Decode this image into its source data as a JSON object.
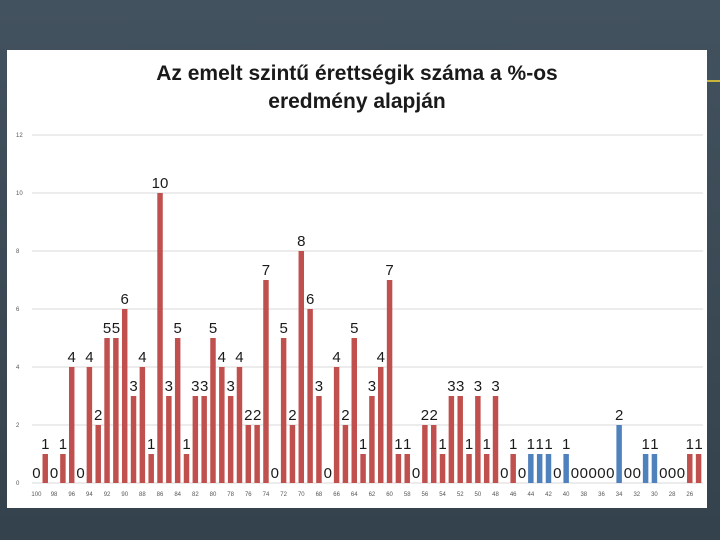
{
  "chart_data": {
    "type": "bar",
    "title_line1": "Az emelt szintű érettségik száma a %-os",
    "title_line2": "eredmény alapján",
    "xlabel": "",
    "ylabel": "",
    "ylim": [
      0,
      12
    ],
    "yticks": [
      "0",
      "2",
      "4",
      "6",
      "8",
      "10",
      "12"
    ],
    "grid": true,
    "colors": {
      "red": "#c0504d",
      "blue": "#4f81bd"
    },
    "x_tick_labels": [
      "100",
      "98",
      "96",
      "94",
      "92",
      "90",
      "88",
      "86",
      "84",
      "82",
      "80",
      "78",
      "76",
      "74",
      "72",
      "70",
      "68",
      "66",
      "64",
      "62",
      "60",
      "58",
      "56",
      "54",
      "52",
      "50",
      "48",
      "46",
      "44",
      "42",
      "40",
      "38",
      "36",
      "34",
      "32",
      "30",
      "28",
      "26"
    ],
    "categories": [
      "100",
      "99",
      "98",
      "97",
      "96",
      "95",
      "94",
      "93",
      "92",
      "91",
      "90",
      "89",
      "88",
      "87",
      "86",
      "85",
      "84",
      "83",
      "82",
      "81",
      "80",
      "79",
      "78",
      "77",
      "76",
      "75",
      "74",
      "73",
      "72",
      "71",
      "70",
      "69",
      "68",
      "67",
      "66",
      "65",
      "64",
      "63",
      "62",
      "61",
      "60",
      "59",
      "58",
      "57",
      "56",
      "55",
      "54",
      "53",
      "52",
      "51",
      "50",
      "49",
      "48",
      "47",
      "46",
      "45",
      "44",
      "43",
      "42",
      "41",
      "40",
      "39",
      "38",
      "37",
      "36",
      "35",
      "34",
      "33",
      "32",
      "31",
      "30",
      "29",
      "28",
      "27",
      "26",
      "25"
    ],
    "values": [
      0,
      1,
      0,
      1,
      4,
      0,
      4,
      2,
      5,
      5,
      6,
      3,
      4,
      1,
      10,
      3,
      5,
      1,
      3,
      3,
      5,
      4,
      3,
      4,
      2,
      2,
      7,
      0,
      5,
      2,
      8,
      6,
      3,
      0,
      4,
      2,
      5,
      1,
      3,
      4,
      7,
      1,
      1,
      0,
      2,
      2,
      1,
      3,
      3,
      1,
      3,
      1,
      3,
      0,
      1,
      0,
      1,
      1,
      1,
      0,
      1,
      0,
      0,
      0,
      0,
      0,
      2,
      0,
      0,
      1,
      1,
      0,
      0,
      0,
      1,
      1
    ],
    "bar_colors": [
      "red",
      "red",
      "red",
      "red",
      "red",
      "red",
      "red",
      "red",
      "red",
      "red",
      "red",
      "red",
      "red",
      "red",
      "red",
      "red",
      "red",
      "red",
      "red",
      "red",
      "red",
      "red",
      "red",
      "red",
      "red",
      "red",
      "red",
      "red",
      "red",
      "red",
      "red",
      "red",
      "red",
      "red",
      "red",
      "red",
      "red",
      "red",
      "red",
      "red",
      "red",
      "red",
      "red",
      "red",
      "red",
      "red",
      "red",
      "red",
      "red",
      "red",
      "red",
      "red",
      "red",
      "red",
      "red",
      "red",
      "blue",
      "blue",
      "blue",
      "blue",
      "blue",
      "blue",
      "blue",
      "blue",
      "blue",
      "blue",
      "blue",
      "blue",
      "blue",
      "blue",
      "blue",
      "red",
      "red",
      "red",
      "red",
      "red"
    ]
  }
}
